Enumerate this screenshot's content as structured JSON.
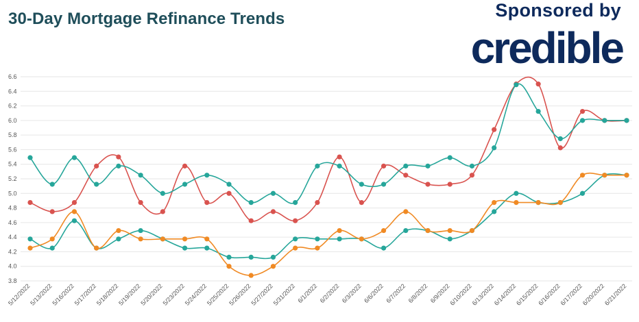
{
  "header": {
    "title": "30-Day Mortgage Refinance Trends",
    "sponsor_label": "Sponsored by",
    "brand_name": "credible"
  },
  "colors": {
    "title": "#1f4e5a",
    "brand": "#0e2a5c",
    "series_red": "#d9534f",
    "series_teal": "#26a69a",
    "series_orange": "#f08a24"
  },
  "chart_data": {
    "type": "line",
    "title": "30-Day Mortgage Refinance Trends",
    "xlabel": "",
    "ylabel": "",
    "ylim": [
      3.8,
      6.6
    ],
    "yticks": [
      3.8,
      4.0,
      4.2,
      4.4,
      4.6,
      4.8,
      5.0,
      5.2,
      5.4,
      5.6,
      5.8,
      6.0,
      6.2,
      6.4,
      6.6
    ],
    "grid": true,
    "legend": "none",
    "categories": [
      "5/12/2022",
      "5/13/2022",
      "5/16/2022",
      "5/17/2022",
      "5/18/2022",
      "5/19/2022",
      "5/20/2022",
      "5/23/2022",
      "5/24/2022",
      "5/25/2022",
      "5/26/2022",
      "5/27/2022",
      "5/31/2022",
      "6/1/2022",
      "6/2/2022",
      "6/3/2022",
      "6/6/2022",
      "6/7/2022",
      "6/8/2022",
      "6/9/2022",
      "6/10/2022",
      "6/13/2022",
      "6/14/2022",
      "6/15/2022",
      "6/16/2022",
      "6/17/2022",
      "6/20/2022",
      "6/21/2022"
    ],
    "series": [
      {
        "color": "#d9534f",
        "values": [
          4.875,
          4.75,
          4.875,
          5.375,
          5.5,
          4.875,
          4.75,
          5.375,
          4.875,
          5.0,
          4.625,
          4.75,
          4.625,
          4.875,
          5.5,
          4.875,
          5.375,
          5.25,
          5.125,
          5.125,
          5.25,
          5.875,
          6.5,
          6.5,
          5.625,
          6.125,
          6.0,
          6.0
        ]
      },
      {
        "color": "#26a69a",
        "values": [
          5.49,
          5.125,
          5.49,
          5.125,
          5.375,
          5.25,
          5.0,
          5.125,
          5.25,
          5.125,
          4.875,
          5.0,
          4.875,
          5.375,
          5.375,
          5.125,
          5.125,
          5.375,
          5.375,
          5.49,
          5.375,
          5.625,
          6.49,
          6.125,
          5.75,
          6.0,
          6.0,
          6.0
        ]
      },
      {
        "color": "#26a69a",
        "values": [
          4.375,
          4.25,
          4.625,
          4.25,
          4.375,
          4.49,
          4.375,
          4.25,
          4.25,
          4.125,
          4.125,
          4.125,
          4.375,
          4.375,
          4.375,
          4.375,
          4.25,
          4.49,
          4.49,
          4.375,
          4.49,
          4.75,
          5.0,
          4.875,
          4.875,
          5.0,
          5.25,
          5.25
        ]
      },
      {
        "color": "#f08a24",
        "values": [
          4.25,
          4.375,
          4.75,
          4.25,
          4.49,
          4.375,
          4.375,
          4.375,
          4.375,
          4.0,
          3.875,
          4.0,
          4.25,
          4.25,
          4.49,
          4.375,
          4.49,
          4.75,
          4.49,
          4.49,
          4.49,
          4.875,
          4.875,
          4.875,
          4.875,
          5.25,
          5.25,
          5.25
        ]
      }
    ]
  }
}
